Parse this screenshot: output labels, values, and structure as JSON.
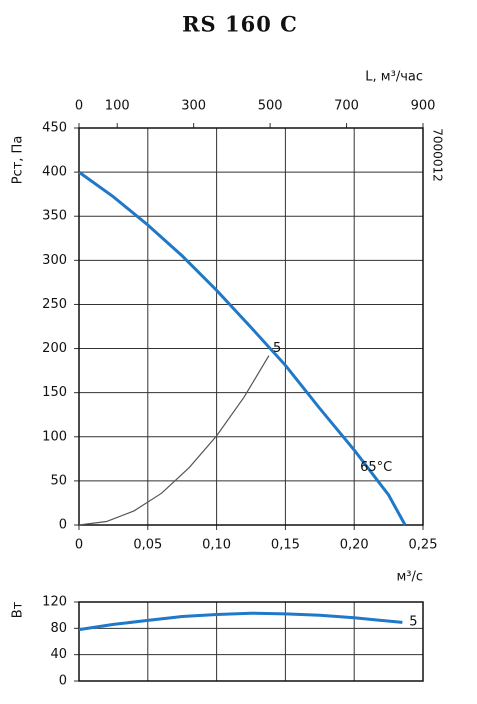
{
  "chart_data": [
    {
      "type": "line",
      "title": "RS 160 C",
      "code": "7000012",
      "x_label": "м³/с",
      "y_label": "Pст, Па",
      "x2_label": "L, м³/час",
      "xlim": [
        0,
        0.25
      ],
      "xticks": [
        0,
        {
          "value": 0.05,
          "label": "0,05"
        },
        {
          "value": 0.1,
          "label": "0,10"
        },
        {
          "value": 0.15,
          "label": "0,15"
        },
        {
          "value": 0.2,
          "label": "0,20"
        },
        {
          "value": 0.25,
          "label": "0,25"
        }
      ],
      "x2lim": [
        0,
        900
      ],
      "x2ticks": [
        0,
        100,
        300,
        500,
        700,
        900
      ],
      "ylim": [
        0,
        450
      ],
      "yticks": [
        0,
        50,
        100,
        150,
        200,
        250,
        300,
        350,
        400,
        450
      ],
      "grid": true,
      "series": [
        {
          "color": "#1f78c8",
          "x": [
            0,
            0.025,
            0.05,
            0.075,
            0.1,
            0.125,
            0.15,
            0.175,
            0.2,
            0.225,
            0.237
          ],
          "values": [
            400,
            372,
            340,
            305,
            266,
            224,
            181,
            132,
            85,
            34,
            0
          ]
        },
        {
          "color": "#555555",
          "x": [
            0,
            0.02,
            0.04,
            0.06,
            0.08,
            0.1,
            0.12,
            0.138
          ],
          "values": [
            0,
            4,
            16,
            36,
            65,
            101,
            145,
            192
          ]
        }
      ],
      "annotations": [
        "5",
        "65°C"
      ]
    },
    {
      "type": "line",
      "y_label": "Вт",
      "xlim": [
        0,
        0.25
      ],
      "ylim": [
        0,
        120
      ],
      "yticks": [
        0,
        40,
        80,
        120
      ],
      "grid": true,
      "series": [
        {
          "color": "#1f78c8",
          "x": [
            0,
            0.025,
            0.05,
            0.075,
            0.1,
            0.125,
            0.15,
            0.175,
            0.2,
            0.235
          ],
          "values": [
            78,
            86,
            92,
            98,
            101,
            103,
            102,
            100,
            96,
            89
          ]
        }
      ],
      "annotations": [
        "5"
      ]
    }
  ]
}
